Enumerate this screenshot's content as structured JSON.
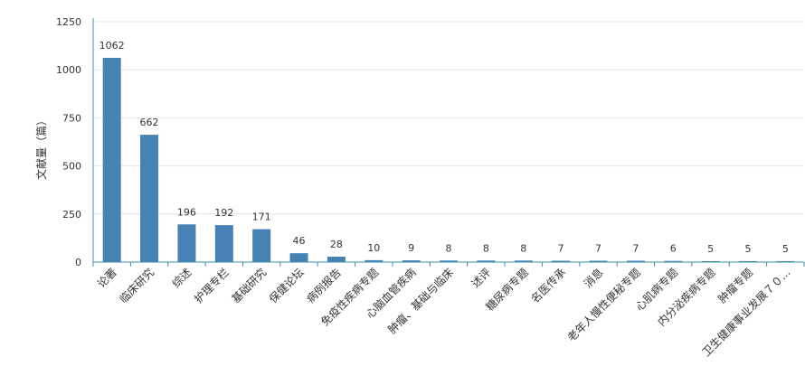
{
  "chart_data": {
    "type": "bar",
    "ylabel": "文献量（篇）",
    "ylim": [
      0,
      1250
    ],
    "yticks": [
      0,
      250,
      500,
      750,
      1000,
      1250
    ],
    "grid": true,
    "bar_color": "#4682b4",
    "axis_color": "#3a8fa8",
    "categories": [
      "论著",
      "临床研究",
      "综述",
      "护理专栏",
      "基础研究",
      "保健论坛",
      "病例报告",
      "免疫性疾病专题",
      "心脑血管疾病",
      "肿瘤、基础与临床",
      "述评",
      "糖尿病专题",
      "名医传承",
      "消息",
      "老年人慢性便秘专题",
      "心肌病专题",
      "内分泌疾病专题",
      "肿瘤专题",
      "卫生健康事业发展７０..."
    ],
    "values": [
      1062,
      662,
      196,
      192,
      171,
      46,
      28,
      10,
      9,
      8,
      8,
      8,
      7,
      7,
      7,
      6,
      5,
      5,
      5
    ]
  }
}
